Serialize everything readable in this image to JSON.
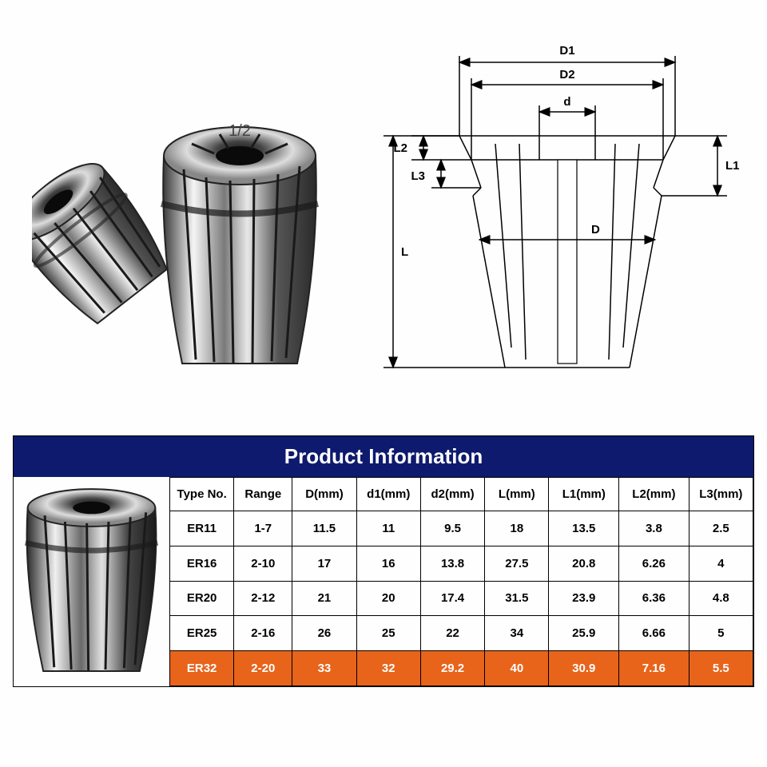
{
  "title": "Product Information",
  "diagram_labels": {
    "D1": "D1",
    "D2": "D2",
    "d": "d",
    "D": "D",
    "L": "L",
    "L1": "L1",
    "L2": "L2",
    "L3": "L3"
  },
  "photo_label": "1/2",
  "table": {
    "columns": [
      "Type No.",
      "Range",
      "D(mm)",
      "d1(mm)",
      "d2(mm)",
      "L(mm)",
      "L1(mm)",
      "L2(mm)",
      "L3(mm)"
    ],
    "rows": [
      [
        "ER11",
        "1-7",
        "11.5",
        "11",
        "9.5",
        "18",
        "13.5",
        "3.8",
        "2.5"
      ],
      [
        "ER16",
        "2-10",
        "17",
        "16",
        "13.8",
        "27.5",
        "20.8",
        "6.26",
        "4"
      ],
      [
        "ER20",
        "2-12",
        "21",
        "20",
        "17.4",
        "31.5",
        "23.9",
        "6.36",
        "4.8"
      ],
      [
        "ER25",
        "2-16",
        "26",
        "25",
        "22",
        "34",
        "25.9",
        "6.66",
        "5"
      ],
      [
        "ER32",
        "2-20",
        "33",
        "32",
        "29.2",
        "40",
        "30.9",
        "7.16",
        "5.5"
      ]
    ],
    "highlight_row_index": 4,
    "highlight_bg": "#e8641b",
    "highlight_fg": "#ffffff",
    "col_widths_pct": [
      11,
      10,
      11,
      11,
      11,
      11,
      12,
      12,
      11
    ]
  },
  "colors": {
    "title_bg": "#0e1a6d",
    "title_fg": "#ffffff",
    "border": "#000000",
    "metal_light": "#f5f5f5",
    "metal_mid": "#b8b8b8",
    "metal_dark": "#3a3a3a"
  }
}
